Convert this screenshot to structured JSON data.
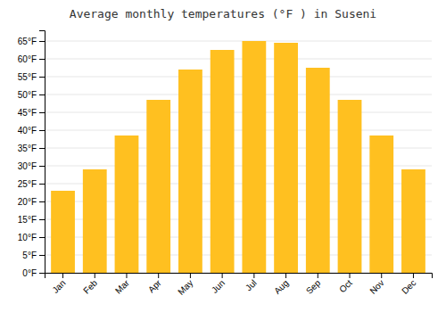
{
  "chart_data": {
    "type": "bar",
    "title": "Average monthly temperatures (°F ) in Suseni",
    "categories": [
      "Jan",
      "Feb",
      "Mar",
      "Apr",
      "May",
      "Jun",
      "Jul",
      "Aug",
      "Sep",
      "Oct",
      "Nov",
      "Dec"
    ],
    "values": [
      23,
      29,
      38.5,
      48.5,
      57,
      62.5,
      65,
      64.5,
      57.5,
      48.5,
      38.5,
      29
    ],
    "color": "#FFC020",
    "ylim": [
      0,
      68
    ],
    "yticks": [
      {
        "value": 0,
        "label": "0°F"
      },
      {
        "value": 5,
        "label": "5°F"
      },
      {
        "value": 10,
        "label": "10°F"
      },
      {
        "value": 15,
        "label": "15°F"
      },
      {
        "value": 20,
        "label": "20°F"
      },
      {
        "value": 25,
        "label": "25°F"
      },
      {
        "value": 30,
        "label": "30°F"
      },
      {
        "value": 35,
        "label": "35°F"
      },
      {
        "value": 40,
        "label": "40°F"
      },
      {
        "value": 45,
        "label": "45°F"
      },
      {
        "value": 50,
        "label": "50°F"
      },
      {
        "value": 55,
        "label": "55°F"
      },
      {
        "value": 60,
        "label": "60°F"
      },
      {
        "value": 65,
        "label": "65°F"
      }
    ],
    "grid": true
  }
}
